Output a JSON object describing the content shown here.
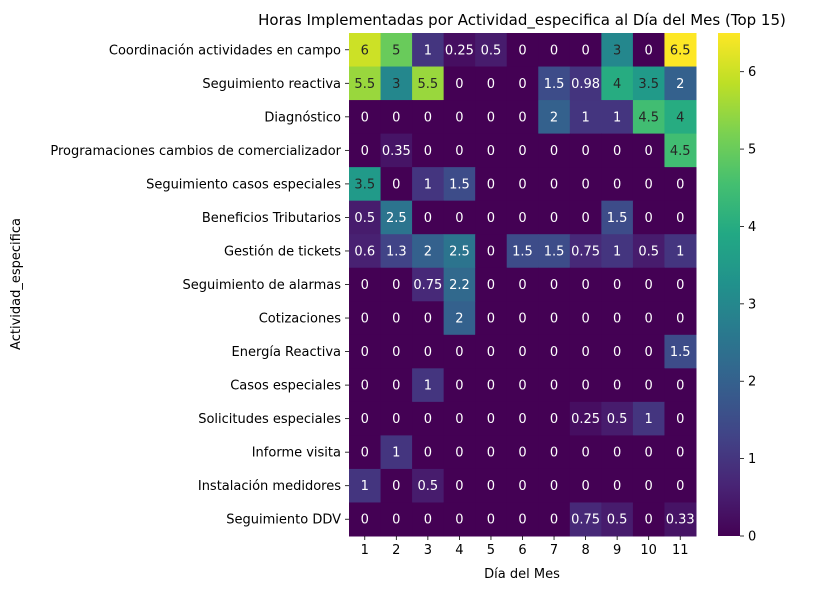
{
  "chart_data": {
    "type": "heatmap",
    "title": "Horas Implementadas por Actividad_especifica al Día del Mes (Top 15)",
    "xlabel": "Día del Mes",
    "ylabel": "Actividad_especifica",
    "x_categories": [
      "1",
      "2",
      "3",
      "4",
      "5",
      "6",
      "7",
      "8",
      "9",
      "10",
      "11"
    ],
    "y_categories": [
      "Coordinación actividades en campo",
      "Seguimiento reactiva",
      "Diagnóstico",
      "Programaciones cambios de comercializador",
      "Seguimiento casos especiales",
      "Beneficios Tributarios",
      "Gestión de tickets",
      "Seguimiento de alarmas",
      "Cotizaciones",
      "Energía Reactiva",
      "Casos especiales",
      "Solicitudes especiales",
      "Informe visita",
      "Instalación medidores",
      "Seguimiento DDV"
    ],
    "values": [
      [
        6,
        5,
        1,
        0.25,
        0.5,
        0,
        0,
        0,
        3,
        0,
        6.5
      ],
      [
        5.5,
        3,
        5.5,
        0,
        0,
        0,
        1.5,
        0.98,
        4,
        3.5,
        2
      ],
      [
        0,
        0,
        0,
        0,
        0,
        0,
        2,
        1,
        1,
        4.5,
        4
      ],
      [
        0,
        0.35,
        0,
        0,
        0,
        0,
        0,
        0,
        0,
        0,
        4.5
      ],
      [
        3.5,
        0,
        1,
        1.5,
        0,
        0,
        0,
        0,
        0,
        0,
        0
      ],
      [
        0.5,
        2.5,
        0,
        0,
        0,
        0,
        0,
        0,
        1.5,
        0,
        0
      ],
      [
        0.6,
        1.3,
        2,
        2.5,
        0,
        1.5,
        1.5,
        0.75,
        1,
        0.5,
        1
      ],
      [
        0,
        0,
        0.75,
        2.2,
        0,
        0,
        0,
        0,
        0,
        0,
        0
      ],
      [
        0,
        0,
        0,
        2,
        0,
        0,
        0,
        0,
        0,
        0,
        0
      ],
      [
        0,
        0,
        0,
        0,
        0,
        0,
        0,
        0,
        0,
        0,
        1.5
      ],
      [
        0,
        0,
        1,
        0,
        0,
        0,
        0,
        0,
        0,
        0,
        0
      ],
      [
        0,
        0,
        0,
        0,
        0,
        0,
        0,
        0.25,
        0.5,
        1,
        0
      ],
      [
        0,
        1,
        0,
        0,
        0,
        0,
        0,
        0,
        0,
        0,
        0
      ],
      [
        1,
        0,
        0.5,
        0,
        0,
        0,
        0,
        0,
        0,
        0,
        0
      ],
      [
        0,
        0,
        0,
        0,
        0,
        0,
        0,
        0.75,
        0.5,
        0,
        0.33
      ]
    ],
    "colormap": "viridis",
    "vmin": 0,
    "vmax": 6.5,
    "colorbar_ticks": [
      0,
      1,
      2,
      3,
      4,
      5,
      6
    ],
    "annot_dark_color": "#262626",
    "annot_light_color": "#ffffff"
  }
}
